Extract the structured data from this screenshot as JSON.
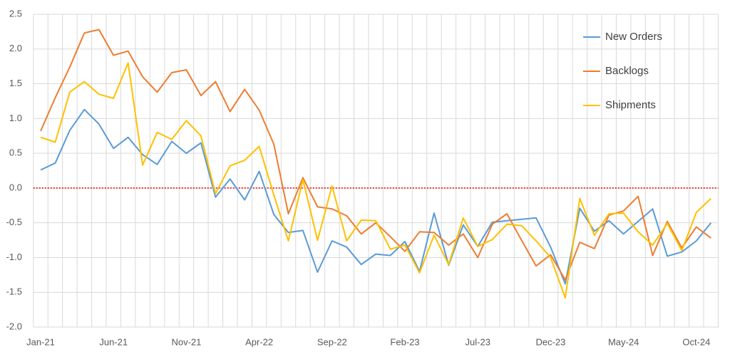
{
  "chart_data": {
    "type": "line",
    "categories": [
      "Jan-21",
      null,
      null,
      null,
      null,
      "Jun-21",
      null,
      null,
      null,
      null,
      "Nov-21",
      null,
      null,
      null,
      null,
      "Apr-22",
      null,
      null,
      null,
      null,
      "Sep-22",
      null,
      null,
      null,
      null,
      "Feb-23",
      null,
      null,
      null,
      null,
      "Jul-23",
      null,
      null,
      null,
      null,
      "Dec-23",
      null,
      null,
      null,
      null,
      "May-24",
      null,
      null,
      null,
      null,
      "Oct-24",
      null
    ],
    "series": [
      {
        "name": "New Orders",
        "color": "#5b9bd5",
        "values": [
          0.26,
          0.36,
          0.83,
          1.13,
          0.92,
          0.57,
          0.73,
          0.48,
          0.34,
          0.67,
          0.5,
          0.65,
          -0.13,
          0.13,
          -0.17,
          0.24,
          -0.38,
          -0.64,
          -0.61,
          -1.21,
          -0.76,
          -0.85,
          -1.1,
          -0.95,
          -0.97,
          -0.77,
          -1.2,
          -0.36,
          -1.11,
          -0.53,
          -0.84,
          -0.49,
          -0.47,
          -0.45,
          -0.43,
          -0.85,
          -1.38,
          -0.29,
          -0.62,
          -0.47,
          -0.66,
          -0.48,
          -0.3,
          -0.98,
          -0.92,
          -0.76,
          -0.5
        ]
      },
      {
        "name": "Backlogs",
        "color": "#ed7d31",
        "values": [
          0.82,
          1.3,
          1.74,
          2.23,
          2.28,
          1.91,
          1.97,
          1.6,
          1.38,
          1.66,
          1.7,
          1.33,
          1.53,
          1.1,
          1.42,
          1.12,
          0.63,
          -0.37,
          0.15,
          -0.27,
          -0.3,
          -0.4,
          -0.66,
          -0.5,
          -0.7,
          -0.91,
          -0.63,
          -0.64,
          -0.82,
          -0.66,
          -1.0,
          -0.52,
          -0.37,
          -0.75,
          -1.12,
          -0.96,
          -1.32,
          -0.78,
          -0.87,
          -0.39,
          -0.33,
          -0.12,
          -0.97,
          -0.48,
          -0.86,
          -0.56,
          -0.72
        ]
      },
      {
        "name": "Shipments",
        "color": "#ffc000",
        "values": [
          0.73,
          0.66,
          1.38,
          1.53,
          1.35,
          1.29,
          1.8,
          0.33,
          0.8,
          0.7,
          0.97,
          0.75,
          -0.08,
          0.32,
          0.4,
          0.6,
          -0.1,
          -0.76,
          0.12,
          -0.75,
          0.03,
          -0.76,
          -0.46,
          -0.47,
          -0.88,
          -0.82,
          -1.22,
          -0.68,
          -1.1,
          -0.43,
          -0.84,
          -0.74,
          -0.52,
          -0.54,
          -0.76,
          -1.0,
          -1.58,
          -0.15,
          -0.68,
          -0.37,
          -0.36,
          -0.63,
          -0.82,
          -0.51,
          -0.9,
          -0.35,
          -0.15
        ]
      }
    ],
    "ylim": [
      -2.0,
      2.5
    ],
    "yticks": [
      {
        "value": -2,
        "label": "-2.0"
      },
      -1.5,
      {
        "value": -1,
        "label": "-1.0"
      },
      -0.5,
      {
        "value": 0,
        "label": "0.0"
      },
      0.5,
      {
        "value": 1,
        "label": "1.0"
      },
      1.5,
      {
        "value": 2,
        "label": "2.0"
      },
      2.5
    ],
    "grid": true,
    "reference_line": {
      "value": 0,
      "color": "#e00000"
    },
    "legend": "upper right"
  }
}
